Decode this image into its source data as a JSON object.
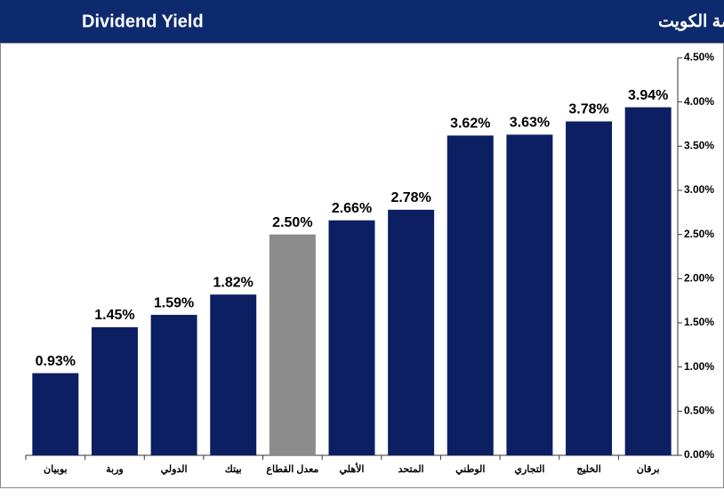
{
  "chart_data": {
    "type": "bar",
    "title": "عائد التوزيعات النقدية للبنوك المدرجة في بورصة الكويت",
    "title_en": "Dividend Yield",
    "categories": [
      "بوبيان",
      "وربة",
      "الدولي",
      "بيتك",
      "معدل القطاع",
      "الأهلي",
      "المتحد",
      "الوطني",
      "التجاري",
      "الخليج",
      "برقان"
    ],
    "values": [
      0.93,
      1.45,
      1.59,
      1.82,
      2.5,
      2.66,
      2.78,
      3.62,
      3.63,
      3.78,
      3.94
    ],
    "value_labels": [
      "0.93%",
      "1.45%",
      "1.59%",
      "1.82%",
      "2.50%",
      "2.66%",
      "2.78%",
      "3.62%",
      "3.63%",
      "3.78%",
      "3.94%"
    ],
    "colors": [
      "#0b1f62",
      "#0b1f62",
      "#0b1f62",
      "#0b1f62",
      "#8c8c8c",
      "#0b1f62",
      "#0b1f62",
      "#0b1f62",
      "#0b1f62",
      "#0b1f62",
      "#0b1f62"
    ],
    "ylim": [
      0,
      4.5
    ],
    "yticks": [
      {
        "value": 0,
        "label": "0.00%"
      },
      {
        "value": 0.5,
        "label": "0.50%"
      },
      {
        "value": 1,
        "label": "1.00%"
      },
      {
        "value": 1.5,
        "label": "1.50%"
      },
      {
        "value": 2,
        "label": "2.00%"
      },
      {
        "value": 2.5,
        "label": "2.50%"
      },
      {
        "value": 3,
        "label": "3.00%"
      },
      {
        "value": 3.5,
        "label": "3.50%"
      },
      {
        "value": 4,
        "label": "4.00%"
      },
      {
        "value": 4.5,
        "label": "4.50%"
      }
    ],
    "y_axis_side": "right",
    "grid": false
  }
}
